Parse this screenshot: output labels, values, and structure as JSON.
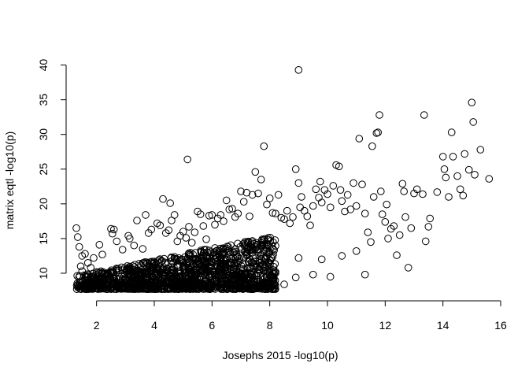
{
  "chart_data": {
    "type": "scatter",
    "title": "",
    "xlabel": "Josephs 2015 -log10(p)",
    "ylabel": "matrix eqtl -log10(p)",
    "xlim": [
      1.3,
      15.7
    ],
    "ylim": [
      7.5,
      39.5
    ],
    "xticks": [
      2,
      4,
      6,
      8,
      10,
      12,
      14,
      16
    ],
    "yticks": [
      10,
      15,
      20,
      25,
      30,
      35,
      40
    ],
    "xtick_labels": [
      "2",
      "4",
      "6",
      "8",
      "10",
      "12",
      "14",
      "16"
    ],
    "ytick_labels": [
      "10",
      "15",
      "20",
      "25",
      "30",
      "35",
      "40"
    ],
    "marker": "open-circle",
    "color": "#000000",
    "series": [
      {
        "name": "points",
        "points": [
          [
            1.3,
            16.5
          ],
          [
            1.35,
            15.2
          ],
          [
            1.4,
            13.8
          ],
          [
            1.5,
            12.5
          ],
          [
            1.6,
            12.8
          ],
          [
            1.45,
            11.0
          ],
          [
            1.5,
            10.3
          ],
          [
            1.7,
            11.5
          ],
          [
            1.8,
            10.8
          ],
          [
            1.9,
            12.2
          ],
          [
            2.1,
            14.1
          ],
          [
            2.2,
            12.7
          ],
          [
            2.5,
            16.4
          ],
          [
            2.6,
            16.3
          ],
          [
            2.55,
            15.7
          ],
          [
            2.7,
            14.6
          ],
          [
            2.9,
            13.4
          ],
          [
            3.1,
            15.4
          ],
          [
            3.15,
            15.0
          ],
          [
            3.3,
            14.0
          ],
          [
            3.4,
            17.6
          ],
          [
            3.6,
            13.5
          ],
          [
            3.7,
            18.4
          ],
          [
            3.8,
            15.8
          ],
          [
            3.9,
            16.3
          ],
          [
            4.1,
            17.2
          ],
          [
            4.2,
            16.9
          ],
          [
            4.3,
            20.7
          ],
          [
            4.4,
            15.8
          ],
          [
            4.5,
            16.2
          ],
          [
            4.55,
            20.1
          ],
          [
            4.6,
            17.6
          ],
          [
            4.7,
            18.4
          ],
          [
            4.8,
            14.6
          ],
          [
            4.9,
            15.4
          ],
          [
            5.0,
            16.0
          ],
          [
            5.1,
            15.1
          ],
          [
            5.15,
            26.4
          ],
          [
            5.2,
            16.7
          ],
          [
            5.3,
            14.4
          ],
          [
            5.4,
            15.9
          ],
          [
            5.5,
            18.9
          ],
          [
            5.6,
            18.5
          ],
          [
            5.7,
            16.8
          ],
          [
            5.8,
            14.9
          ],
          [
            5.9,
            18.3
          ],
          [
            6.0,
            18.4
          ],
          [
            6.1,
            17.0
          ],
          [
            6.2,
            17.9
          ],
          [
            6.3,
            18.4
          ],
          [
            6.4,
            17.5
          ],
          [
            6.5,
            20.5
          ],
          [
            6.6,
            19.2
          ],
          [
            6.7,
            19.3
          ],
          [
            6.8,
            18.1
          ],
          [
            6.9,
            18.6
          ],
          [
            7.0,
            21.8
          ],
          [
            7.1,
            20.3
          ],
          [
            7.2,
            21.6
          ],
          [
            7.3,
            18.2
          ],
          [
            7.4,
            21.3
          ],
          [
            7.5,
            24.6
          ],
          [
            7.6,
            21.5
          ],
          [
            7.7,
            23.5
          ],
          [
            7.8,
            28.3
          ],
          [
            7.9,
            19.9
          ],
          [
            8.0,
            20.8
          ],
          [
            8.1,
            18.7
          ],
          [
            8.2,
            18.6
          ],
          [
            8.3,
            21.3
          ],
          [
            8.4,
            18.0
          ],
          [
            8.5,
            17.8
          ],
          [
            8.6,
            19.0
          ],
          [
            8.7,
            17.2
          ],
          [
            8.8,
            18.1
          ],
          [
            8.9,
            25.0
          ],
          [
            9.0,
            39.3
          ],
          [
            9.0,
            23.0
          ],
          [
            9.05,
            19.5
          ],
          [
            9.1,
            21.0
          ],
          [
            9.2,
            19.0
          ],
          [
            9.3,
            18.2
          ],
          [
            9.4,
            16.9
          ],
          [
            9.5,
            19.7
          ],
          [
            9.6,
            22.1
          ],
          [
            9.7,
            20.9
          ],
          [
            9.75,
            23.2
          ],
          [
            9.8,
            20.2
          ],
          [
            9.9,
            22.0
          ],
          [
            10.0,
            21.4
          ],
          [
            10.1,
            19.5
          ],
          [
            10.2,
            22.6
          ],
          [
            10.3,
            25.6
          ],
          [
            10.4,
            25.4
          ],
          [
            10.45,
            22.0
          ],
          [
            10.5,
            20.4
          ],
          [
            10.6,
            18.9
          ],
          [
            10.7,
            21.3
          ],
          [
            10.8,
            19.2
          ],
          [
            10.9,
            23.0
          ],
          [
            11.0,
            19.7
          ],
          [
            11.1,
            29.4
          ],
          [
            11.2,
            22.8
          ],
          [
            11.3,
            18.6
          ],
          [
            11.4,
            15.9
          ],
          [
            11.5,
            14.5
          ],
          [
            11.55,
            28.3
          ],
          [
            11.6,
            21.0
          ],
          [
            11.7,
            30.2
          ],
          [
            11.75,
            30.3
          ],
          [
            11.8,
            32.8
          ],
          [
            11.85,
            21.8
          ],
          [
            11.9,
            18.5
          ],
          [
            12.0,
            17.4
          ],
          [
            12.05,
            19.9
          ],
          [
            12.1,
            15.0
          ],
          [
            12.2,
            16.4
          ],
          [
            12.3,
            16.8
          ],
          [
            12.4,
            12.6
          ],
          [
            12.5,
            15.5
          ],
          [
            12.6,
            22.9
          ],
          [
            12.65,
            21.8
          ],
          [
            12.7,
            18.1
          ],
          [
            12.8,
            10.8
          ],
          [
            12.9,
            16.5
          ],
          [
            13.0,
            21.5
          ],
          [
            13.1,
            22.1
          ],
          [
            13.3,
            21.4
          ],
          [
            13.35,
            32.8
          ],
          [
            13.4,
            14.6
          ],
          [
            13.5,
            16.7
          ],
          [
            13.55,
            17.9
          ],
          [
            13.8,
            21.7
          ],
          [
            14.0,
            26.8
          ],
          [
            14.05,
            25.0
          ],
          [
            14.1,
            23.8
          ],
          [
            14.2,
            21.0
          ],
          [
            14.3,
            30.3
          ],
          [
            14.35,
            26.8
          ],
          [
            14.5,
            24.0
          ],
          [
            14.6,
            22.1
          ],
          [
            14.7,
            21.2
          ],
          [
            14.75,
            27.2
          ],
          [
            14.9,
            24.9
          ],
          [
            15.0,
            34.6
          ],
          [
            15.05,
            31.8
          ],
          [
            15.1,
            24.2
          ],
          [
            15.3,
            27.8
          ],
          [
            15.6,
            23.6
          ],
          [
            11.3,
            9.8
          ],
          [
            10.1,
            9.5
          ],
          [
            9.5,
            9.8
          ],
          [
            8.9,
            9.4
          ],
          [
            8.5,
            8.4
          ],
          [
            7.9,
            8.3
          ],
          [
            8.2,
            10.2
          ],
          [
            9.0,
            12.2
          ],
          [
            9.8,
            12.0
          ],
          [
            10.5,
            12.5
          ],
          [
            11.0,
            13.2
          ]
        ],
        "dense_region": {
          "x_from": 1.3,
          "x_to": 8.2,
          "y_from": 7.7,
          "y_top_at_x_from": 9.6,
          "y_top_at_x_to": 15.5,
          "count": 1500
        }
      }
    ]
  }
}
